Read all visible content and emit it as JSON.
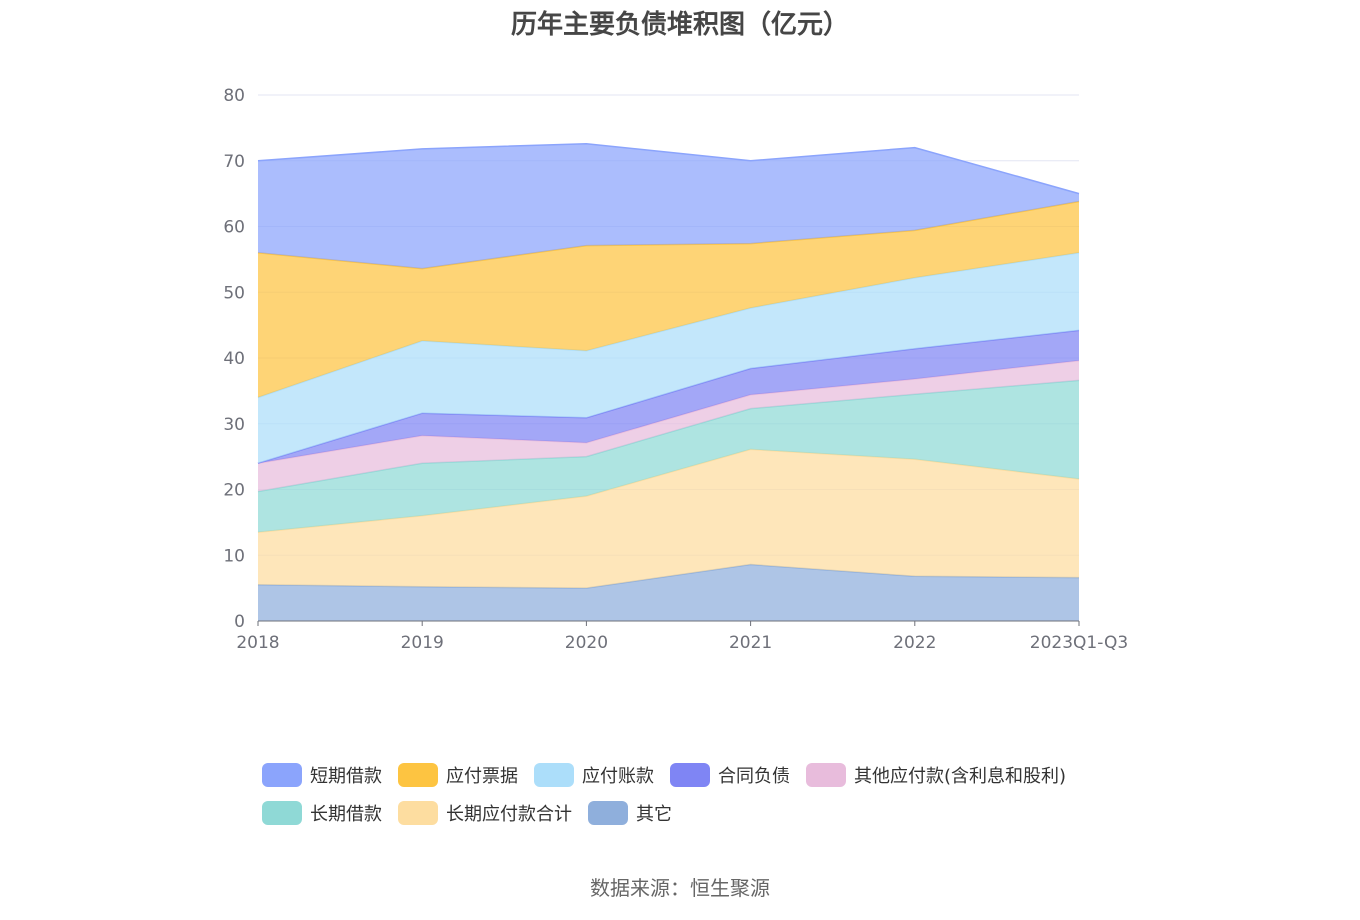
{
  "title": "历年主要负债堆积图（亿元）",
  "source": "数据来源：恒生聚源",
  "chart_data": {
    "type": "area",
    "stacked": true,
    "categories": [
      "2018",
      "2019",
      "2020",
      "2021",
      "2022",
      "2023Q1-Q3"
    ],
    "ylim": [
      0,
      80
    ],
    "yticks": [
      "0",
      "10",
      "20",
      "30",
      "40",
      "50",
      "60",
      "70",
      "80"
    ],
    "grid": true,
    "legend_position": "bottom",
    "series": [
      {
        "name": "其它",
        "color": "#8fafdc",
        "values": [
          5.5,
          5.2,
          5.0,
          8.6,
          6.8,
          6.6
        ]
      },
      {
        "name": "长期应付款合计",
        "color": "#fddda0",
        "values": [
          8.0,
          10.8,
          14.0,
          17.5,
          17.8,
          15.0
        ]
      },
      {
        "name": "长期借款",
        "color": "#8fd9d6",
        "values": [
          6.2,
          8.0,
          6.0,
          6.2,
          9.9,
          15.0
        ]
      },
      {
        "name": "其他应付款(含利息和股利)",
        "color": "#e8bcdc",
        "values": [
          4.3,
          4.2,
          2.1,
          2.1,
          2.3,
          3.0
        ]
      },
      {
        "name": "合同负债",
        "color": "#7f85f4",
        "values": [
          0.0,
          3.4,
          3.8,
          4.0,
          4.6,
          4.6
        ]
      },
      {
        "name": "应付账款",
        "color": "#acdefa",
        "values": [
          10.0,
          11.0,
          10.2,
          9.2,
          10.8,
          11.8
        ]
      },
      {
        "name": "应付票据",
        "color": "#fdc441",
        "values": [
          22.0,
          11.0,
          16.0,
          9.8,
          7.2,
          7.8
        ]
      },
      {
        "name": "短期借款",
        "color": "#8ba4fc",
        "values": [
          14.0,
          18.2,
          15.5,
          12.6,
          12.6,
          1.2
        ]
      }
    ]
  },
  "legend": {
    "rows": [
      [
        {
          "name": "短期借款",
          "color": "#8ba4fc"
        },
        {
          "name": "应付票据",
          "color": "#fdc441"
        },
        {
          "name": "应付账款",
          "color": "#acdefa"
        },
        {
          "name": "合同负债",
          "color": "#7f85f4"
        },
        {
          "name": "其他应付款(含利息和股利)",
          "color": "#e8bcdc"
        }
      ],
      [
        {
          "name": "长期借款",
          "color": "#8fd9d6"
        },
        {
          "name": "长期应付款合计",
          "color": "#fddda0"
        },
        {
          "name": "其它",
          "color": "#8fafdc"
        }
      ]
    ]
  }
}
